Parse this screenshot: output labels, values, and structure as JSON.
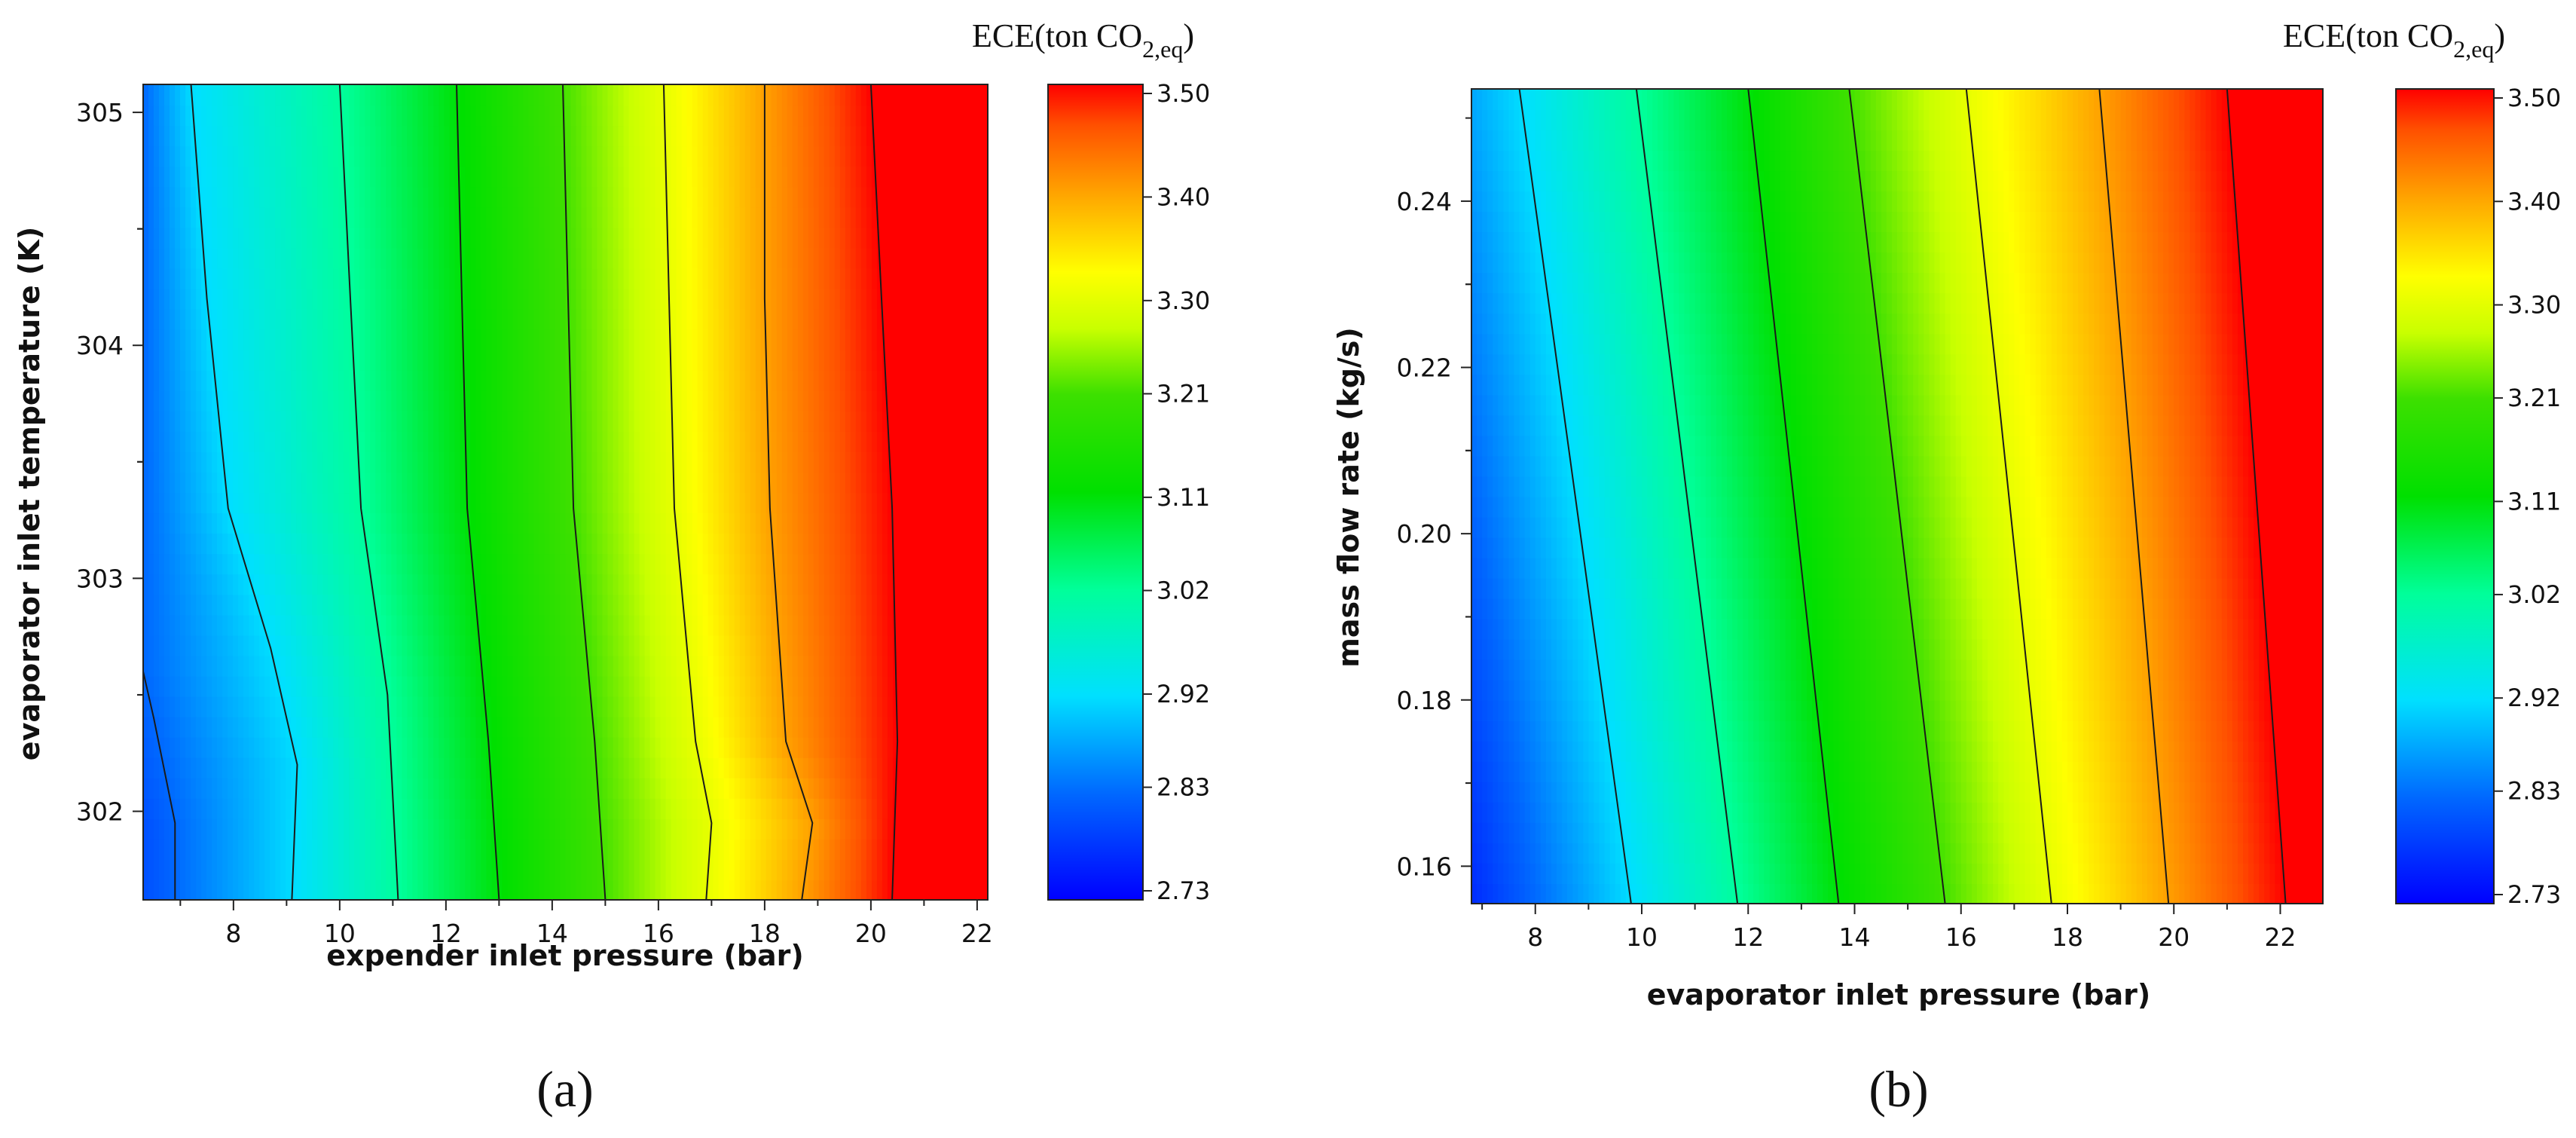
{
  "chart_data": [
    {
      "type": "heatmap",
      "panel_label": "(a)",
      "xlabel": "expender inlet pressure (bar)",
      "ylabel": "evaporator inlet temperature (K)",
      "xlim": [
        6.3,
        22.2
      ],
      "ylim": [
        301.62,
        305.12
      ],
      "x_ticks": [
        8,
        10,
        12,
        14,
        16,
        18,
        20,
        22
      ],
      "y_ticks": [
        302,
        303,
        304,
        305
      ],
      "colorbar": {
        "title": "ECE(ton CO",
        "title_subscript": "2,eq",
        "title_suffix": ")",
        "ticks": [
          "2.73",
          "2.83",
          "2.92",
          "3.02",
          "3.11",
          "3.21",
          "3.30",
          "3.40",
          "3.50"
        ],
        "range": [
          2.73,
          3.5
        ]
      },
      "contour_lines_x_at_y": [
        {
          "level": "2.83",
          "x_at": [
            [
              301.62,
              6.9
            ],
            [
              301.95,
              6.9
            ],
            [
              302.4,
              6.5
            ],
            [
              302.6,
              6.3
            ]
          ]
        },
        {
          "level": "2.92",
          "x_at": [
            [
              301.62,
              9.1
            ],
            [
              302.2,
              9.2
            ],
            [
              302.7,
              8.7
            ],
            [
              303.3,
              7.9
            ],
            [
              304.2,
              7.5
            ],
            [
              305.12,
              7.2
            ]
          ]
        },
        {
          "level": "3.02",
          "x_at": [
            [
              301.62,
              11.1
            ],
            [
              302.5,
              10.9
            ],
            [
              303.3,
              10.4
            ],
            [
              304.2,
              10.2
            ],
            [
              305.12,
              10.0
            ]
          ]
        },
        {
          "level": "3.11",
          "x_at": [
            [
              301.62,
              13.0
            ],
            [
              302.3,
              12.8
            ],
            [
              303.3,
              12.4
            ],
            [
              304.2,
              12.3
            ],
            [
              305.12,
              12.2
            ]
          ]
        },
        {
          "level": "3.21",
          "x_at": [
            [
              301.62,
              15.0
            ],
            [
              302.3,
              14.8
            ],
            [
              303.3,
              14.4
            ],
            [
              304.2,
              14.3
            ],
            [
              305.12,
              14.2
            ]
          ]
        },
        {
          "level": "3.30",
          "x_at": [
            [
              301.62,
              16.9
            ],
            [
              301.95,
              17.0
            ],
            [
              302.3,
              16.7
            ],
            [
              303.3,
              16.3
            ],
            [
              304.2,
              16.2
            ],
            [
              305.12,
              16.1
            ]
          ]
        },
        {
          "level": "3.40",
          "x_at": [
            [
              301.62,
              18.7
            ],
            [
              301.95,
              18.9
            ],
            [
              302.3,
              18.4
            ],
            [
              303.3,
              18.1
            ],
            [
              304.2,
              18.0
            ],
            [
              305.12,
              18.0
            ]
          ]
        },
        {
          "level": "3.50",
          "x_at": [
            [
              301.62,
              20.4
            ],
            [
              302.3,
              20.5
            ],
            [
              303.3,
              20.4
            ],
            [
              304.2,
              20.2
            ],
            [
              305.12,
              20.0
            ]
          ]
        }
      ]
    },
    {
      "type": "heatmap",
      "panel_label": "(b)",
      "xlabel": "evaporator inlet pressure (bar)",
      "ylabel": "mass flow rate (kg/s)",
      "xlim": [
        6.8,
        22.8
      ],
      "ylim": [
        0.1555,
        0.2535
      ],
      "x_ticks": [
        8,
        10,
        12,
        14,
        16,
        18,
        20,
        22
      ],
      "y_ticks": [
        0.16,
        0.18,
        0.2,
        0.22,
        0.24
      ],
      "y_tick_labels": [
        "0.16",
        "0.18",
        "0.20",
        "0.22",
        "0.24"
      ],
      "colorbar": {
        "title": "ECE(ton CO",
        "title_subscript": "2,eq",
        "title_suffix": ")",
        "ticks": [
          "2.73",
          "2.83",
          "2.92",
          "3.02",
          "3.11",
          "3.21",
          "3.30",
          "3.40",
          "3.50"
        ],
        "range": [
          2.73,
          3.5
        ]
      },
      "contour_lines_x_at_y": [
        {
          "level": "2.92",
          "x_at": [
            [
              0.1555,
              9.8
            ],
            [
              0.2535,
              7.7
            ]
          ]
        },
        {
          "level": "3.02",
          "x_at": [
            [
              0.1555,
              11.8
            ],
            [
              0.2535,
              9.9
            ]
          ]
        },
        {
          "level": "3.11",
          "x_at": [
            [
              0.1555,
              13.7
            ],
            [
              0.2535,
              12.0
            ]
          ]
        },
        {
          "level": "3.21",
          "x_at": [
            [
              0.1555,
              15.7
            ],
            [
              0.2535,
              13.9
            ]
          ]
        },
        {
          "level": "3.30",
          "x_at": [
            [
              0.1555,
              17.7
            ],
            [
              0.2535,
              16.1
            ]
          ]
        },
        {
          "level": "3.40",
          "x_at": [
            [
              0.1555,
              19.9
            ],
            [
              0.2535,
              18.6
            ]
          ]
        },
        {
          "level": "3.50",
          "x_at": [
            [
              0.1555,
              22.1
            ],
            [
              0.2535,
              21.0
            ]
          ]
        }
      ]
    }
  ]
}
